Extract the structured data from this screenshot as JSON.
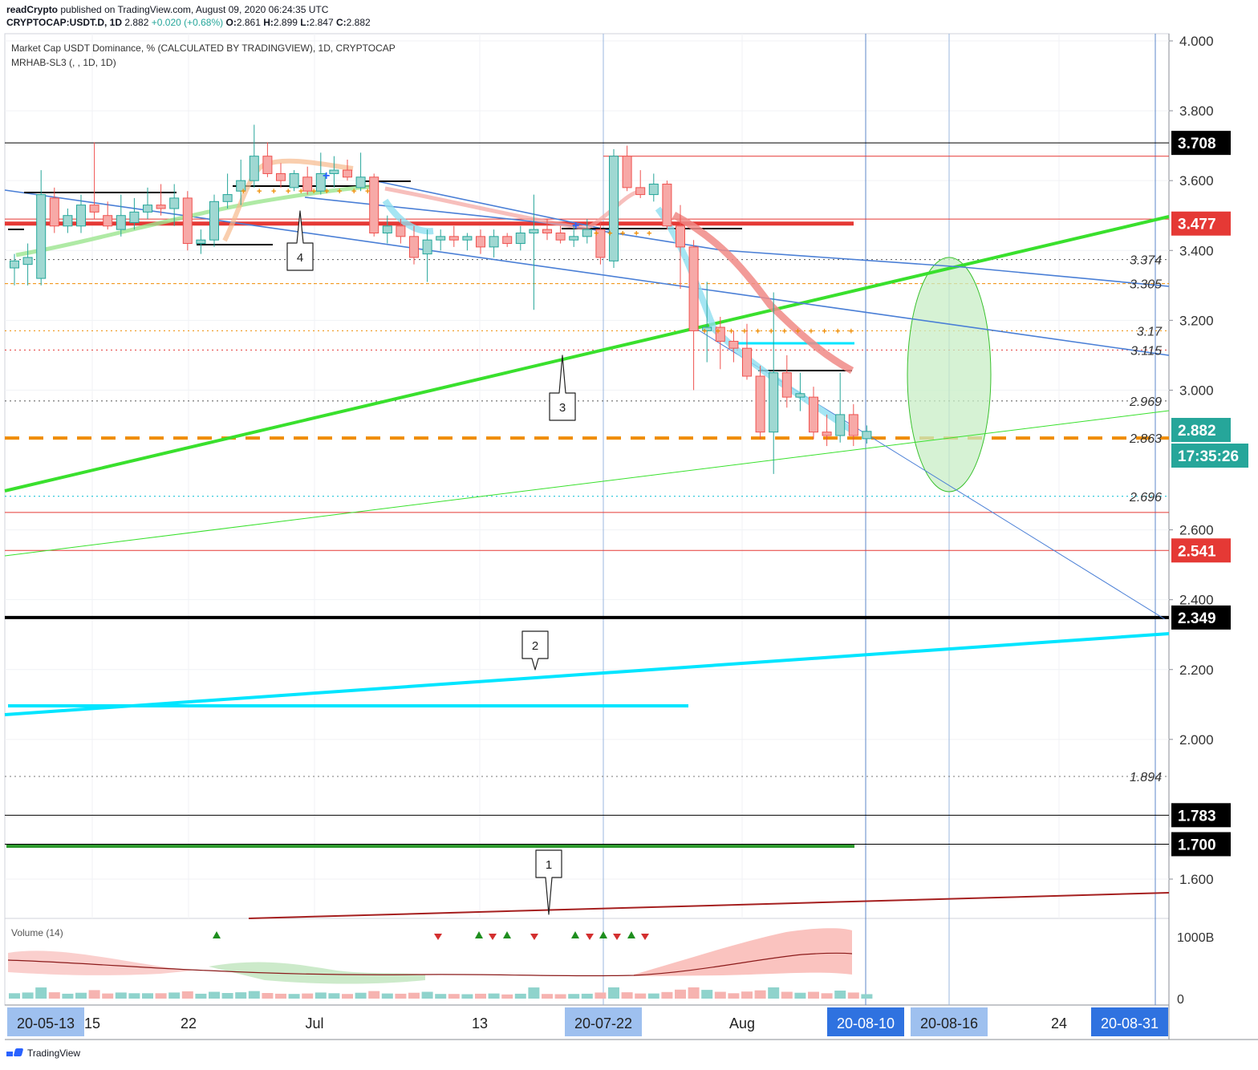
{
  "header": {
    "author": "readCrypto",
    "published_text": "published on TradingView.com, August 09, 2020 06:24:35 UTC",
    "symbol": "CRYPTOCAP:USDT.D, 1D",
    "last": "2.882",
    "change": "+0.020 (+0.68%)",
    "o_label": "O:",
    "o": "2.861",
    "h_label": "H:",
    "h": "2.899",
    "l_label": "L:",
    "l": "2.847",
    "c_label": "C:",
    "c": "2.882"
  },
  "legend": {
    "title": "Market Cap USDT Dominance, % (CALCULATED BY TRADINGVIEW), 1D, CRYPTOCAP",
    "indicator": "MRHAB-SL3 (, , 1D, 1D)"
  },
  "volume_pane": {
    "title": "Volume (14)",
    "axis_labels": [
      "1000B",
      "0"
    ]
  },
  "footer": {
    "brand": "TradingView"
  },
  "colors": {
    "up": "#26a69a",
    "up_fill": "#9fd8d2",
    "down": "#ef5350",
    "down_fill": "#f7a9a7",
    "green_trend": "#39e02d",
    "cyan": "#00e5ff",
    "blue_line": "#4a7fd6",
    "red_level": "#e53935",
    "orange": "#ef8c00",
    "ellipse_fill": "#c8edc6"
  },
  "chart_data": {
    "type": "candlestick",
    "ylim": [
      1.5,
      4.02
    ],
    "y_ticks": [
      "4.000",
      "3.800",
      "3.600",
      "3.400",
      "3.200",
      "3.000",
      "2.600",
      "2.400",
      "2.200",
      "2.000",
      "1.600"
    ],
    "x_ticks": [
      {
        "label": "20-05-13",
        "highlight": true
      },
      {
        "label": "15",
        "highlight": false
      },
      {
        "label": "22",
        "highlight": false
      },
      {
        "label": "Jul",
        "highlight": false
      },
      {
        "label": "13",
        "highlight": false
      },
      {
        "label": "20-07-22",
        "highlight": true
      },
      {
        "label": "Aug",
        "highlight": false
      },
      {
        "label": "20-08-10",
        "highlight": true
      },
      {
        "label": "20-08-16",
        "highlight": true
      },
      {
        "label": "24",
        "highlight": false
      },
      {
        "label": "20-08-31",
        "highlight": true
      }
    ],
    "price_badges": [
      {
        "label": "3.708",
        "value": 3.708,
        "color": "#000000"
      },
      {
        "label": "3.477",
        "value": 3.477,
        "color": "#e53935"
      },
      {
        "label": "2.882",
        "value": 2.882,
        "color": "#26a69a"
      },
      {
        "label": "17:35:26",
        "value": 2.82,
        "color": "#26a69a"
      },
      {
        "label": "2.541",
        "value": 2.541,
        "color": "#e53935"
      },
      {
        "label": "2.349",
        "value": 2.349,
        "color": "#000000"
      },
      {
        "label": "1.783",
        "value": 1.783,
        "color": "#000000"
      },
      {
        "label": "1.700",
        "value": 1.7,
        "color": "#000000"
      }
    ],
    "level_labels": [
      "3.374",
      "3.305",
      "3.17",
      "3.115",
      "2.969",
      "2.863",
      "2.696",
      "1.894"
    ],
    "levels": [
      {
        "value": 3.374,
        "style": "dotted",
        "color": "#555555"
      },
      {
        "value": 3.305,
        "style": "dashed",
        "color": "#ef8c00"
      },
      {
        "value": 3.17,
        "style": "dotted",
        "color": "#ef8c00"
      },
      {
        "value": 3.115,
        "style": "dotted",
        "color": "#e53935"
      },
      {
        "value": 2.969,
        "style": "dotted",
        "color": "#555555"
      },
      {
        "value": 2.863,
        "style": "thickdash",
        "color": "#ef8c00"
      },
      {
        "value": 2.696,
        "style": "dotted",
        "color": "#00bcd4"
      },
      {
        "value": 1.894,
        "style": "dotted",
        "color": "#777777"
      },
      {
        "value": 3.708,
        "style": "solid",
        "color": "#000000"
      },
      {
        "value": 3.67,
        "style": "solid",
        "color": "#e53935"
      },
      {
        "value": 3.49,
        "style": "solid",
        "color": "#e53935"
      },
      {
        "value": 3.477,
        "style": "thickred",
        "color": "#e53935"
      },
      {
        "value": 2.65,
        "style": "solid",
        "color": "#e53935"
      },
      {
        "value": 2.541,
        "style": "solid",
        "color": "#e53935"
      },
      {
        "value": 2.349,
        "style": "thickblack",
        "color": "#000000"
      },
      {
        "value": 1.783,
        "style": "solid",
        "color": "#000000"
      },
      {
        "value": 1.7,
        "style": "solid",
        "color": "#000000"
      }
    ],
    "candles": [
      {
        "o": 3.35,
        "h": 3.39,
        "l": 3.3,
        "c": 3.37
      },
      {
        "o": 3.36,
        "h": 3.42,
        "l": 3.3,
        "c": 3.38
      },
      {
        "o": 3.32,
        "h": 3.63,
        "l": 3.3,
        "c": 3.56
      },
      {
        "o": 3.55,
        "h": 3.58,
        "l": 3.45,
        "c": 3.47
      },
      {
        "o": 3.47,
        "h": 3.52,
        "l": 3.45,
        "c": 3.5
      },
      {
        "o": 3.47,
        "h": 3.56,
        "l": 3.45,
        "c": 3.53
      },
      {
        "o": 3.53,
        "h": 3.71,
        "l": 3.49,
        "c": 3.51
      },
      {
        "o": 3.5,
        "h": 3.54,
        "l": 3.46,
        "c": 3.47
      },
      {
        "o": 3.46,
        "h": 3.56,
        "l": 3.44,
        "c": 3.5
      },
      {
        "o": 3.48,
        "h": 3.55,
        "l": 3.46,
        "c": 3.51
      },
      {
        "o": 3.51,
        "h": 3.58,
        "l": 3.49,
        "c": 3.53
      },
      {
        "o": 3.53,
        "h": 3.59,
        "l": 3.5,
        "c": 3.52
      },
      {
        "o": 3.52,
        "h": 3.59,
        "l": 3.47,
        "c": 3.55
      },
      {
        "o": 3.55,
        "h": 3.57,
        "l": 3.4,
        "c": 3.42
      },
      {
        "o": 3.42,
        "h": 3.46,
        "l": 3.39,
        "c": 3.43
      },
      {
        "o": 3.43,
        "h": 3.56,
        "l": 3.41,
        "c": 3.54
      },
      {
        "o": 3.54,
        "h": 3.62,
        "l": 3.52,
        "c": 3.56
      },
      {
        "o": 3.57,
        "h": 3.66,
        "l": 3.53,
        "c": 3.6
      },
      {
        "o": 3.6,
        "h": 3.76,
        "l": 3.58,
        "c": 3.67
      },
      {
        "o": 3.67,
        "h": 3.71,
        "l": 3.61,
        "c": 3.62
      },
      {
        "o": 3.62,
        "h": 3.65,
        "l": 3.58,
        "c": 3.6
      },
      {
        "o": 3.58,
        "h": 3.63,
        "l": 3.57,
        "c": 3.62
      },
      {
        "o": 3.61,
        "h": 3.64,
        "l": 3.56,
        "c": 3.57
      },
      {
        "o": 3.57,
        "h": 3.68,
        "l": 3.56,
        "c": 3.62
      },
      {
        "o": 3.62,
        "h": 3.67,
        "l": 3.58,
        "c": 3.63
      },
      {
        "o": 3.63,
        "h": 3.66,
        "l": 3.6,
        "c": 3.61
      },
      {
        "o": 3.58,
        "h": 3.68,
        "l": 3.57,
        "c": 3.61
      },
      {
        "o": 3.61,
        "h": 3.62,
        "l": 3.44,
        "c": 3.45
      },
      {
        "o": 3.45,
        "h": 3.5,
        "l": 3.42,
        "c": 3.47
      },
      {
        "o": 3.47,
        "h": 3.49,
        "l": 3.42,
        "c": 3.44
      },
      {
        "o": 3.44,
        "h": 3.47,
        "l": 3.36,
        "c": 3.38
      },
      {
        "o": 3.39,
        "h": 3.46,
        "l": 3.31,
        "c": 3.43
      },
      {
        "o": 3.43,
        "h": 3.46,
        "l": 3.4,
        "c": 3.44
      },
      {
        "o": 3.44,
        "h": 3.47,
        "l": 3.41,
        "c": 3.43
      },
      {
        "o": 3.43,
        "h": 3.45,
        "l": 3.4,
        "c": 3.44
      },
      {
        "o": 3.44,
        "h": 3.46,
        "l": 3.39,
        "c": 3.41
      },
      {
        "o": 3.41,
        "h": 3.46,
        "l": 3.38,
        "c": 3.44
      },
      {
        "o": 3.44,
        "h": 3.45,
        "l": 3.41,
        "c": 3.42
      },
      {
        "o": 3.42,
        "h": 3.47,
        "l": 3.4,
        "c": 3.45
      },
      {
        "o": 3.45,
        "h": 3.56,
        "l": 3.23,
        "c": 3.46
      },
      {
        "o": 3.46,
        "h": 3.49,
        "l": 3.43,
        "c": 3.45
      },
      {
        "o": 3.45,
        "h": 3.47,
        "l": 3.42,
        "c": 3.43
      },
      {
        "o": 3.43,
        "h": 3.47,
        "l": 3.41,
        "c": 3.44
      },
      {
        "o": 3.44,
        "h": 3.49,
        "l": 3.42,
        "c": 3.46
      },
      {
        "o": 3.46,
        "h": 3.48,
        "l": 3.36,
        "c": 3.38
      },
      {
        "o": 3.37,
        "h": 3.69,
        "l": 3.35,
        "c": 3.67
      },
      {
        "o": 3.67,
        "h": 3.7,
        "l": 3.57,
        "c": 3.58
      },
      {
        "o": 3.58,
        "h": 3.63,
        "l": 3.55,
        "c": 3.56
      },
      {
        "o": 3.56,
        "h": 3.62,
        "l": 3.54,
        "c": 3.59
      },
      {
        "o": 3.59,
        "h": 3.6,
        "l": 3.46,
        "c": 3.47
      },
      {
        "o": 3.47,
        "h": 3.53,
        "l": 3.29,
        "c": 3.41
      },
      {
        "o": 3.41,
        "h": 3.43,
        "l": 3.0,
        "c": 3.17
      },
      {
        "o": 3.17,
        "h": 3.31,
        "l": 3.08,
        "c": 3.18
      },
      {
        "o": 3.18,
        "h": 3.21,
        "l": 3.06,
        "c": 3.14
      },
      {
        "o": 3.14,
        "h": 3.17,
        "l": 3.08,
        "c": 3.12
      },
      {
        "o": 3.12,
        "h": 3.19,
        "l": 3.03,
        "c": 3.04
      },
      {
        "o": 3.04,
        "h": 3.07,
        "l": 2.86,
        "c": 2.88
      },
      {
        "o": 2.88,
        "h": 3.28,
        "l": 2.76,
        "c": 3.05
      },
      {
        "o": 3.05,
        "h": 3.1,
        "l": 2.95,
        "c": 2.98
      },
      {
        "o": 2.98,
        "h": 3.05,
        "l": 2.94,
        "c": 2.99
      },
      {
        "o": 2.98,
        "h": 3.01,
        "l": 2.86,
        "c": 2.88
      },
      {
        "o": 2.88,
        "h": 2.93,
        "l": 2.84,
        "c": 2.87
      },
      {
        "o": 2.87,
        "h": 3.05,
        "l": 2.85,
        "c": 2.93
      },
      {
        "o": 2.93,
        "h": 2.96,
        "l": 2.84,
        "c": 2.87
      },
      {
        "o": 2.861,
        "h": 2.899,
        "l": 2.847,
        "c": 2.882
      }
    ],
    "annotations": [
      {
        "label": "4",
        "value": 3.38
      },
      {
        "label": "3",
        "value": 2.98
      },
      {
        "label": "2",
        "value": 2.37
      },
      {
        "label": "1",
        "value": 1.6
      }
    ]
  }
}
